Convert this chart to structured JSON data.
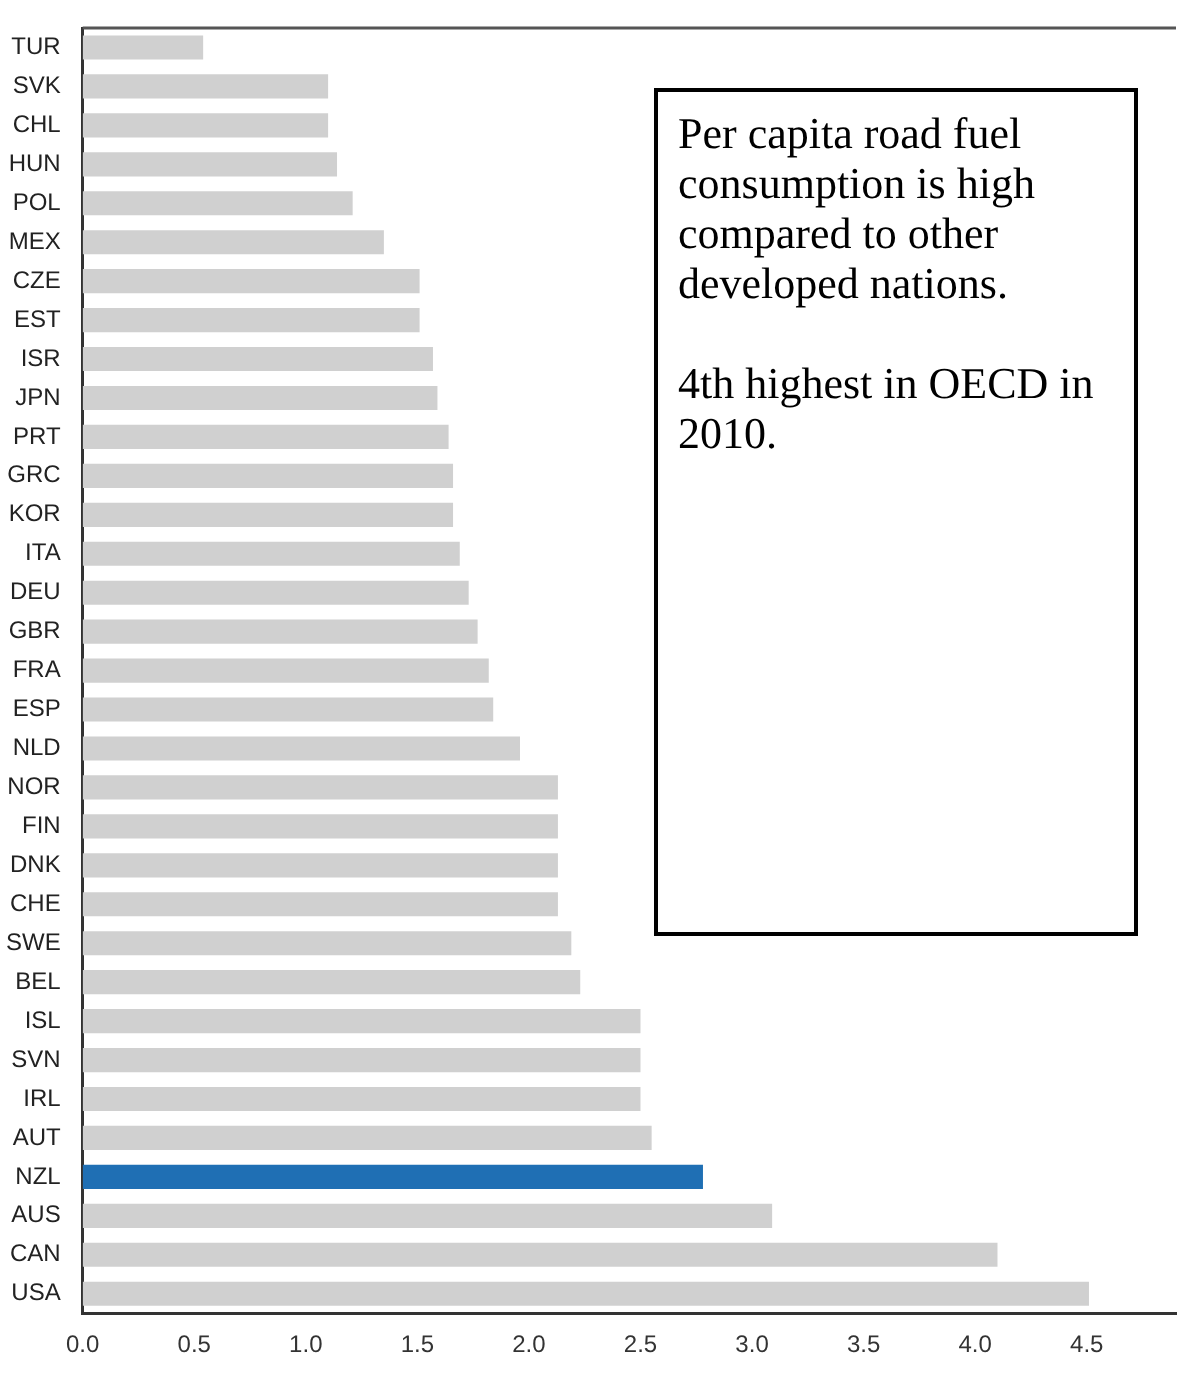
{
  "chart_data": {
    "type": "bar",
    "orientation": "horizontal",
    "categories": [
      "TUR",
      "SVK",
      "CHL",
      "HUN",
      "POL",
      "MEX",
      "CZE",
      "EST",
      "ISR",
      "JPN",
      "PRT",
      "GRC",
      "KOR",
      "ITA",
      "DEU",
      "GBR",
      "FRA",
      "ESP",
      "NLD",
      "NOR",
      "FIN",
      "DNK",
      "CHE",
      "SWE",
      "BEL",
      "ISL",
      "SVN",
      "IRL",
      "AUT",
      "NZL",
      "AUS",
      "CAN",
      "USA"
    ],
    "values": [
      0.54,
      1.1,
      1.1,
      1.14,
      1.21,
      1.35,
      1.51,
      1.51,
      1.57,
      1.59,
      1.64,
      1.66,
      1.66,
      1.69,
      1.73,
      1.77,
      1.82,
      1.84,
      1.96,
      2.13,
      2.13,
      2.13,
      2.13,
      2.19,
      2.23,
      2.5,
      2.5,
      2.5,
      2.55,
      2.78,
      3.09,
      4.1,
      4.51
    ],
    "colors": [
      "#d0d0d0",
      "#d0d0d0",
      "#d0d0d0",
      "#d0d0d0",
      "#d0d0d0",
      "#d0d0d0",
      "#d0d0d0",
      "#d0d0d0",
      "#d0d0d0",
      "#d0d0d0",
      "#d0d0d0",
      "#d0d0d0",
      "#d0d0d0",
      "#d0d0d0",
      "#d0d0d0",
      "#d0d0d0",
      "#d0d0d0",
      "#d0d0d0",
      "#d0d0d0",
      "#d0d0d0",
      "#d0d0d0",
      "#d0d0d0",
      "#d0d0d0",
      "#d0d0d0",
      "#d0d0d0",
      "#d0d0d0",
      "#d0d0d0",
      "#d0d0d0",
      "#d0d0d0",
      "#1f6fb4",
      "#d0d0d0",
      "#d0d0d0",
      "#d0d0d0"
    ],
    "xlim": [
      0,
      4.9
    ],
    "xticks": [
      {
        "value": 0,
        "label": "0.0"
      },
      0.5,
      {
        "value": 1,
        "label": "1.0"
      },
      1.5,
      {
        "value": 2,
        "label": "2.0"
      },
      2.5,
      {
        "value": 3,
        "label": "3.0"
      },
      3.5,
      {
        "value": 4,
        "label": "4.0"
      },
      4.5
    ],
    "grid": false,
    "legend": false,
    "annotations": [
      "Per capita road fuel consumption is high compared to other developed nations.",
      "4th highest in OECD in 2010."
    ]
  }
}
